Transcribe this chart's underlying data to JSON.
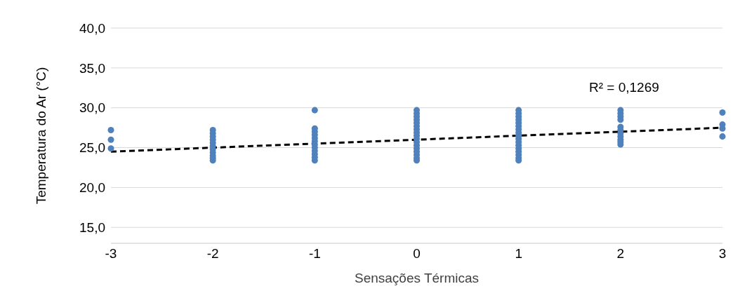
{
  "chart_data": {
    "type": "scatter",
    "xlabel": "Sensações Térmicas",
    "ylabel": "Temperatura do Ar (°C)",
    "xlim": [
      -3,
      3
    ],
    "xticks": [
      -3,
      -2,
      -1,
      0,
      1,
      2,
      3
    ],
    "ylim": [
      13,
      40
    ],
    "yticks": [
      {
        "value": 15,
        "label": "15,0"
      },
      {
        "value": 20,
        "label": "20,0"
      },
      {
        "value": 25,
        "label": "25,0"
      },
      {
        "value": 30,
        "label": "30,0"
      },
      {
        "value": 35,
        "label": "35,0"
      },
      {
        "value": 40,
        "label": "40,0"
      }
    ],
    "grid": "y",
    "legend": false,
    "marker": "circle",
    "annotations": [
      "R² = 0,1269"
    ],
    "series": [
      {
        "color": "#4f81bd",
        "x": [
          -3,
          -3,
          -3,
          -2,
          -2,
          -2,
          -2,
          -2,
          -2,
          -2,
          -2,
          -2,
          -2,
          -2,
          -1,
          -1,
          -1,
          -1,
          -1,
          -1,
          -1,
          -1,
          -1,
          -1,
          -1,
          -1,
          0,
          0,
          0,
          0,
          0,
          0,
          0,
          0,
          0,
          0,
          0,
          0,
          0,
          0,
          0,
          0,
          0,
          1,
          1,
          1,
          1,
          1,
          1,
          1,
          1,
          1,
          1,
          1,
          1,
          1,
          1,
          1,
          1,
          1,
          2,
          2,
          2,
          2,
          2,
          2,
          2,
          2,
          2,
          2,
          2,
          3,
          3,
          3,
          3
        ],
        "values": [
          27.2,
          26.0,
          24.9,
          27.2,
          26.8,
          26.4,
          26.0,
          25.6,
          25.2,
          24.8,
          24.4,
          24.0,
          23.7,
          23.4,
          29.7,
          27.4,
          27.0,
          26.6,
          26.2,
          25.8,
          25.4,
          25.0,
          24.6,
          24.2,
          23.8,
          23.4,
          29.7,
          29.3,
          28.9,
          28.5,
          28.1,
          27.7,
          27.3,
          26.9,
          26.5,
          26.1,
          25.7,
          25.3,
          24.9,
          24.5,
          24.1,
          23.7,
          23.4,
          29.7,
          29.3,
          28.9,
          28.5,
          28.1,
          27.7,
          27.3,
          26.9,
          26.5,
          26.1,
          25.7,
          25.3,
          24.9,
          24.5,
          24.1,
          23.7,
          23.4,
          29.7,
          29.3,
          28.9,
          28.5,
          27.6,
          27.2,
          26.8,
          26.4,
          26.0,
          25.7,
          25.4,
          29.4,
          27.9,
          27.4,
          26.4
        ]
      },
      {
        "type": "line",
        "color": "#000000",
        "line_style": "dashed",
        "marker": "none",
        "x": [
          -3,
          3
        ],
        "values": [
          24.5,
          27.5
        ]
      }
    ]
  }
}
